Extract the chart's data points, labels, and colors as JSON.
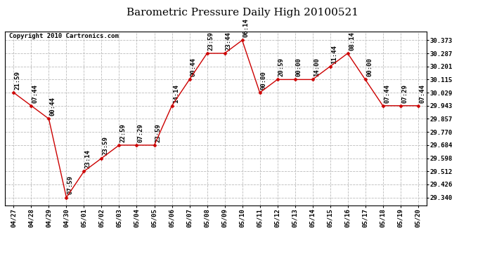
{
  "title": "Barometric Pressure Daily High 20100521",
  "copyright": "Copyright 2010 Cartronics.com",
  "x_labels": [
    "04/27",
    "04/28",
    "04/29",
    "04/30",
    "05/01",
    "05/02",
    "05/03",
    "05/04",
    "05/05",
    "05/06",
    "05/07",
    "05/08",
    "05/09",
    "05/10",
    "05/11",
    "05/12",
    "05/13",
    "05/14",
    "05/15",
    "05/16",
    "05/17",
    "05/18",
    "05/19",
    "05/20"
  ],
  "y_values": [
    30.029,
    29.943,
    29.857,
    29.34,
    29.512,
    29.598,
    29.684,
    29.684,
    29.684,
    29.943,
    30.115,
    30.287,
    30.287,
    30.373,
    30.029,
    30.115,
    30.115,
    30.115,
    30.201,
    30.287,
    30.115,
    29.943,
    29.943,
    29.943
  ],
  "time_labels": [
    "21:59",
    "07:44",
    "00:44",
    "07:59",
    "23:14",
    "23:59",
    "22:59",
    "07:29",
    "23:59",
    "14:14",
    "00:44",
    "23:59",
    "23:44",
    "06:14",
    "00:00",
    "20:59",
    "00:00",
    "14:00",
    "11:44",
    "08:14",
    "00:00",
    "07:44",
    "07:29",
    "07:44"
  ],
  "y_ticks": [
    29.34,
    29.426,
    29.512,
    29.598,
    29.684,
    29.77,
    29.857,
    29.943,
    30.029,
    30.115,
    30.201,
    30.287,
    30.373
  ],
  "ylim": [
    29.29,
    30.43
  ],
  "line_color": "#CC0000",
  "marker_color": "#CC0000",
  "bg_color": "#FFFFFF",
  "plot_bg_color": "#FFFFFF",
  "grid_color": "#BBBBBB",
  "title_fontsize": 11,
  "copyright_fontsize": 6.5,
  "tick_fontsize": 6.5,
  "annotation_fontsize": 6.5
}
